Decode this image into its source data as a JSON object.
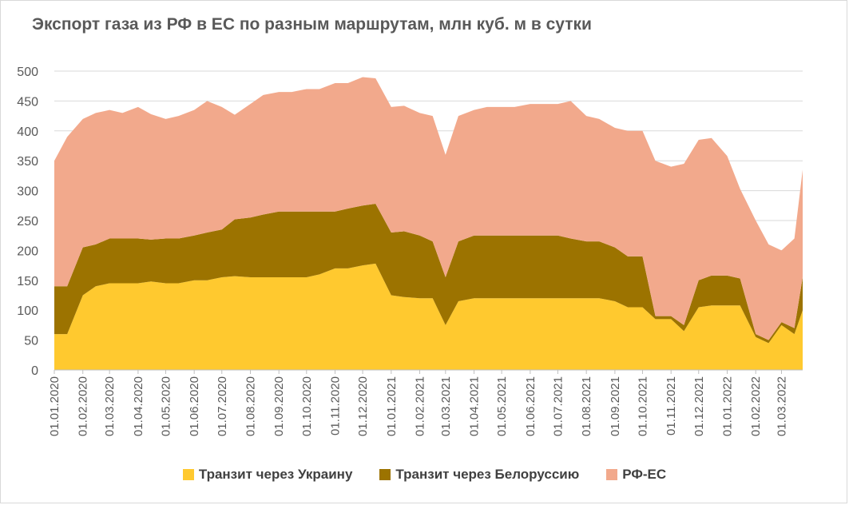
{
  "chart_data": {
    "type": "area",
    "stacked": true,
    "title": "Экспорт газа из РФ в ЕС по разным маршрутам, млн куб. м в сутки",
    "ylim": [
      0,
      500
    ],
    "yticks": [
      0,
      50,
      100,
      150,
      200,
      250,
      300,
      350,
      400,
      450,
      500
    ],
    "grid": true,
    "legend_position": "bottom",
    "x_tick_labels": [
      "01.01.2020",
      "01.02.2020",
      "01.03.2020",
      "01.04.2020",
      "01.05.2020",
      "01.06.2020",
      "01.07.2020",
      "01.08.2020",
      "01.09.2020",
      "01.10.2020",
      "01.11.2020",
      "01.12.2020",
      "01.01.2021",
      "01.02.2021",
      "01.03.2021",
      "01.04.2021",
      "01.05.2021",
      "01.06.2021",
      "01.07.2021",
      "01.08.2021",
      "01.09.2021",
      "01.10.2021",
      "01.11.2021",
      "01.12.2021",
      "01.01.2022",
      "01.02.2022",
      "01.03.2022"
    ],
    "x": [
      "01.01.2020",
      "15.01.2020",
      "01.02.2020",
      "15.02.2020",
      "01.03.2020",
      "15.03.2020",
      "01.04.2020",
      "15.04.2020",
      "01.05.2020",
      "15.05.2020",
      "01.06.2020",
      "15.06.2020",
      "01.07.2020",
      "15.07.2020",
      "01.08.2020",
      "15.08.2020",
      "01.09.2020",
      "15.09.2020",
      "01.10.2020",
      "15.10.2020",
      "01.11.2020",
      "15.11.2020",
      "01.12.2020",
      "15.12.2020",
      "01.01.2021",
      "15.01.2021",
      "01.02.2021",
      "15.02.2021",
      "01.03.2021",
      "15.03.2021",
      "01.04.2021",
      "15.04.2021",
      "01.05.2021",
      "15.05.2021",
      "01.06.2021",
      "15.06.2021",
      "01.07.2021",
      "15.07.2021",
      "01.08.2021",
      "15.08.2021",
      "01.09.2021",
      "15.09.2021",
      "01.10.2021",
      "15.10.2021",
      "01.11.2021",
      "15.11.2021",
      "01.12.2021",
      "15.12.2021",
      "01.01.2022",
      "15.01.2022",
      "01.02.2022",
      "15.02.2022",
      "01.03.2022",
      "15.03.2022",
      "24.03.2022"
    ],
    "series": [
      {
        "name": "Транзит через Украину",
        "color": "#FFC92F",
        "values": [
          60,
          60,
          125,
          140,
          145,
          145,
          145,
          148,
          145,
          145,
          150,
          150,
          155,
          157,
          155,
          155,
          155,
          155,
          155,
          160,
          170,
          170,
          175,
          178,
          125,
          122,
          120,
          120,
          75,
          115,
          120,
          120,
          120,
          120,
          120,
          120,
          120,
          120,
          120,
          120,
          115,
          105,
          105,
          85,
          85,
          65,
          105,
          108,
          108,
          108,
          55,
          45,
          75,
          60,
          100
        ]
      },
      {
        "name": "Транзит через Белоруссию",
        "color": "#9C7300",
        "values": [
          80,
          80,
          80,
          70,
          75,
          75,
          75,
          70,
          75,
          75,
          75,
          80,
          80,
          95,
          100,
          105,
          110,
          110,
          110,
          105,
          95,
          100,
          100,
          100,
          105,
          110,
          105,
          95,
          80,
          100,
          105,
          105,
          105,
          105,
          105,
          105,
          105,
          100,
          95,
          95,
          90,
          85,
          85,
          5,
          5,
          10,
          45,
          50,
          50,
          45,
          5,
          5,
          5,
          10,
          55
        ]
      },
      {
        "name": "РФ-ЕС",
        "color": "#F2A98C",
        "values": [
          210,
          250,
          215,
          220,
          215,
          210,
          220,
          210,
          200,
          205,
          210,
          220,
          205,
          175,
          190,
          200,
          200,
          200,
          205,
          205,
          215,
          210,
          215,
          210,
          210,
          210,
          205,
          210,
          205,
          210,
          210,
          215,
          215,
          215,
          220,
          220,
          220,
          230,
          210,
          205,
          200,
          210,
          210,
          260,
          250,
          270,
          235,
          230,
          200,
          150,
          190,
          160,
          120,
          150,
          180
        ]
      }
    ]
  },
  "legend": {
    "items": [
      {
        "label": "Транзит через Украину",
        "color": "#FFC92F"
      },
      {
        "label": "Транзит через Белоруссию",
        "color": "#9C7300"
      },
      {
        "label": "РФ-ЕС",
        "color": "#F2A98C"
      }
    ]
  }
}
